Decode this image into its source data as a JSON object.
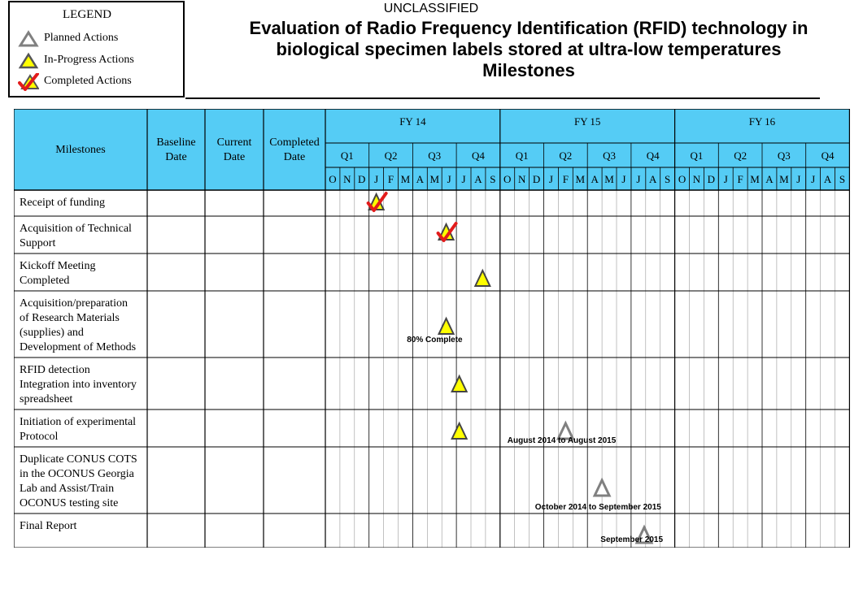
{
  "classification": "UNCLASSIFIED",
  "title_lines": [
    "Evaluation of Radio Frequency Identification (RFID) technology in",
    "biological specimen labels stored at ultra-low temperatures",
    "Milestones"
  ],
  "legend": {
    "title": "LEGEND",
    "items": [
      {
        "label": "Planned  Actions",
        "icon": "planned-triangle-icon"
      },
      {
        "label": "In-Progress  Actions",
        "icon": "in-progress-triangle-icon"
      },
      {
        "label": "Completed  Actions",
        "icon": "completed-check-icon"
      }
    ]
  },
  "table": {
    "col_headers": [
      "Milestones",
      "Baseline Date",
      "Current Date",
      "Completed Date"
    ],
    "fiscal_years": [
      "FY 14",
      "FY 15",
      "FY 16"
    ],
    "quarters": [
      "Q1",
      "Q2",
      "Q3",
      "Q4"
    ],
    "months": [
      "O",
      "N",
      "D",
      "J",
      "F",
      "M",
      "A",
      "M",
      "J",
      "J",
      "A",
      "S"
    ],
    "rows": [
      {
        "lines": [
          "Receipt of funding"
        ]
      },
      {
        "lines": [
          "Acquisition  of Technical",
          "Support"
        ]
      },
      {
        "lines": [
          "Kickoff Meeting",
          "Completed"
        ]
      },
      {
        "lines": [
          "Acquisition/preparation",
          "of Research Materials",
          "(supplies)  and",
          "Development of Methods"
        ]
      },
      {
        "lines": [
          "RFID detection",
          "Integration into inventory",
          "spreadsheet"
        ]
      },
      {
        "lines": [
          "Initiation  of experimental",
          "Protocol"
        ]
      },
      {
        "lines": [
          "Duplicate CONUS COTS",
          "in the OCONUS Georgia",
          "Lab and Assist/Train",
          "OCONUS testing site"
        ]
      },
      {
        "lines": [
          "Final Report"
        ]
      }
    ]
  },
  "markers": [
    {
      "row": 0,
      "month_index": 3.5,
      "type": "completed"
    },
    {
      "row": 1,
      "month_index": 8.3,
      "type": "completed"
    },
    {
      "row": 2,
      "month_index": 10.8,
      "type": "in-progress"
    },
    {
      "row": 3,
      "month_index": 8.3,
      "type": "in-progress"
    },
    {
      "row": 4,
      "month_index": 9.2,
      "type": "in-progress"
    },
    {
      "row": 5,
      "month_index": 9.2,
      "type": "in-progress"
    },
    {
      "row": 5,
      "month_index": 16.5,
      "type": "planned"
    },
    {
      "row": 6,
      "month_index": 19.0,
      "type": "planned"
    },
    {
      "row": 7,
      "month_index": 21.9,
      "type": "planned"
    }
  ],
  "notes": {
    "row3": "80% Complete",
    "row5": "August 2014 to August 2015",
    "row6": "October 2014 to September 2015",
    "row7": "September 2015"
  },
  "colors": {
    "header_fill": "#55ccf5",
    "triangle_fill": "#ffff00",
    "planned_stroke": "#808080",
    "check": "#e21b1b"
  }
}
